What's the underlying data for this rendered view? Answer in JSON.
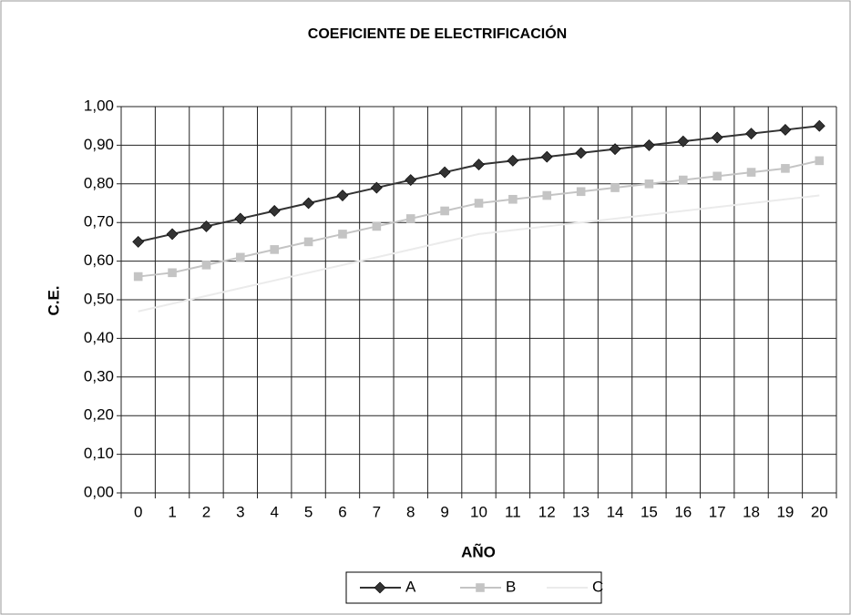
{
  "chart_data": {
    "type": "line",
    "title": "COEFICIENTE DE ELECTRIFICACIÓN",
    "xlabel": "AÑO",
    "ylabel": "C.E.",
    "categories": [
      "0",
      "1",
      "2",
      "3",
      "4",
      "5",
      "6",
      "7",
      "8",
      "9",
      "10",
      "11",
      "12",
      "13",
      "14",
      "15",
      "16",
      "17",
      "18",
      "19",
      "20"
    ],
    "series": [
      {
        "name": "A",
        "color": "#333333",
        "marker": "diamond",
        "values": [
          0.65,
          0.67,
          0.69,
          0.71,
          0.73,
          0.75,
          0.77,
          0.79,
          0.81,
          0.83,
          0.85,
          0.86,
          0.87,
          0.88,
          0.89,
          0.9,
          0.91,
          0.92,
          0.93,
          0.94,
          0.95
        ]
      },
      {
        "name": "B",
        "color": "#c4c4c4",
        "marker": "square",
        "values": [
          0.56,
          0.57,
          0.59,
          0.61,
          0.63,
          0.65,
          0.67,
          0.69,
          0.71,
          0.73,
          0.75,
          0.76,
          0.77,
          0.78,
          0.79,
          0.8,
          0.81,
          0.82,
          0.83,
          0.84,
          0.86
        ]
      },
      {
        "name": "C",
        "color": "#ebebeb",
        "marker": "none",
        "values": [
          0.47,
          0.49,
          0.51,
          0.53,
          0.55,
          0.57,
          0.59,
          0.61,
          0.63,
          0.65,
          0.67,
          0.68,
          0.69,
          0.7,
          0.71,
          0.72,
          0.73,
          0.74,
          0.75,
          0.76,
          0.77
        ]
      }
    ],
    "ylim": [
      0,
      1
    ],
    "yticks": [
      {
        "value": 0,
        "label": "0,00"
      },
      {
        "value": 0.1,
        "label": "0,10"
      },
      {
        "value": 0.2,
        "label": "0,20"
      },
      {
        "value": 0.3,
        "label": "0,30"
      },
      {
        "value": 0.4,
        "label": "0,40"
      },
      {
        "value": 0.5,
        "label": "0,50"
      },
      {
        "value": 0.6,
        "label": "0,60"
      },
      {
        "value": 0.7,
        "label": "0,70"
      },
      {
        "value": 0.8,
        "label": "0,80"
      },
      {
        "value": 0.9,
        "label": "0,90"
      },
      {
        "value": 1,
        "label": "1,00"
      }
    ],
    "grid": true,
    "legend": "bottom"
  }
}
